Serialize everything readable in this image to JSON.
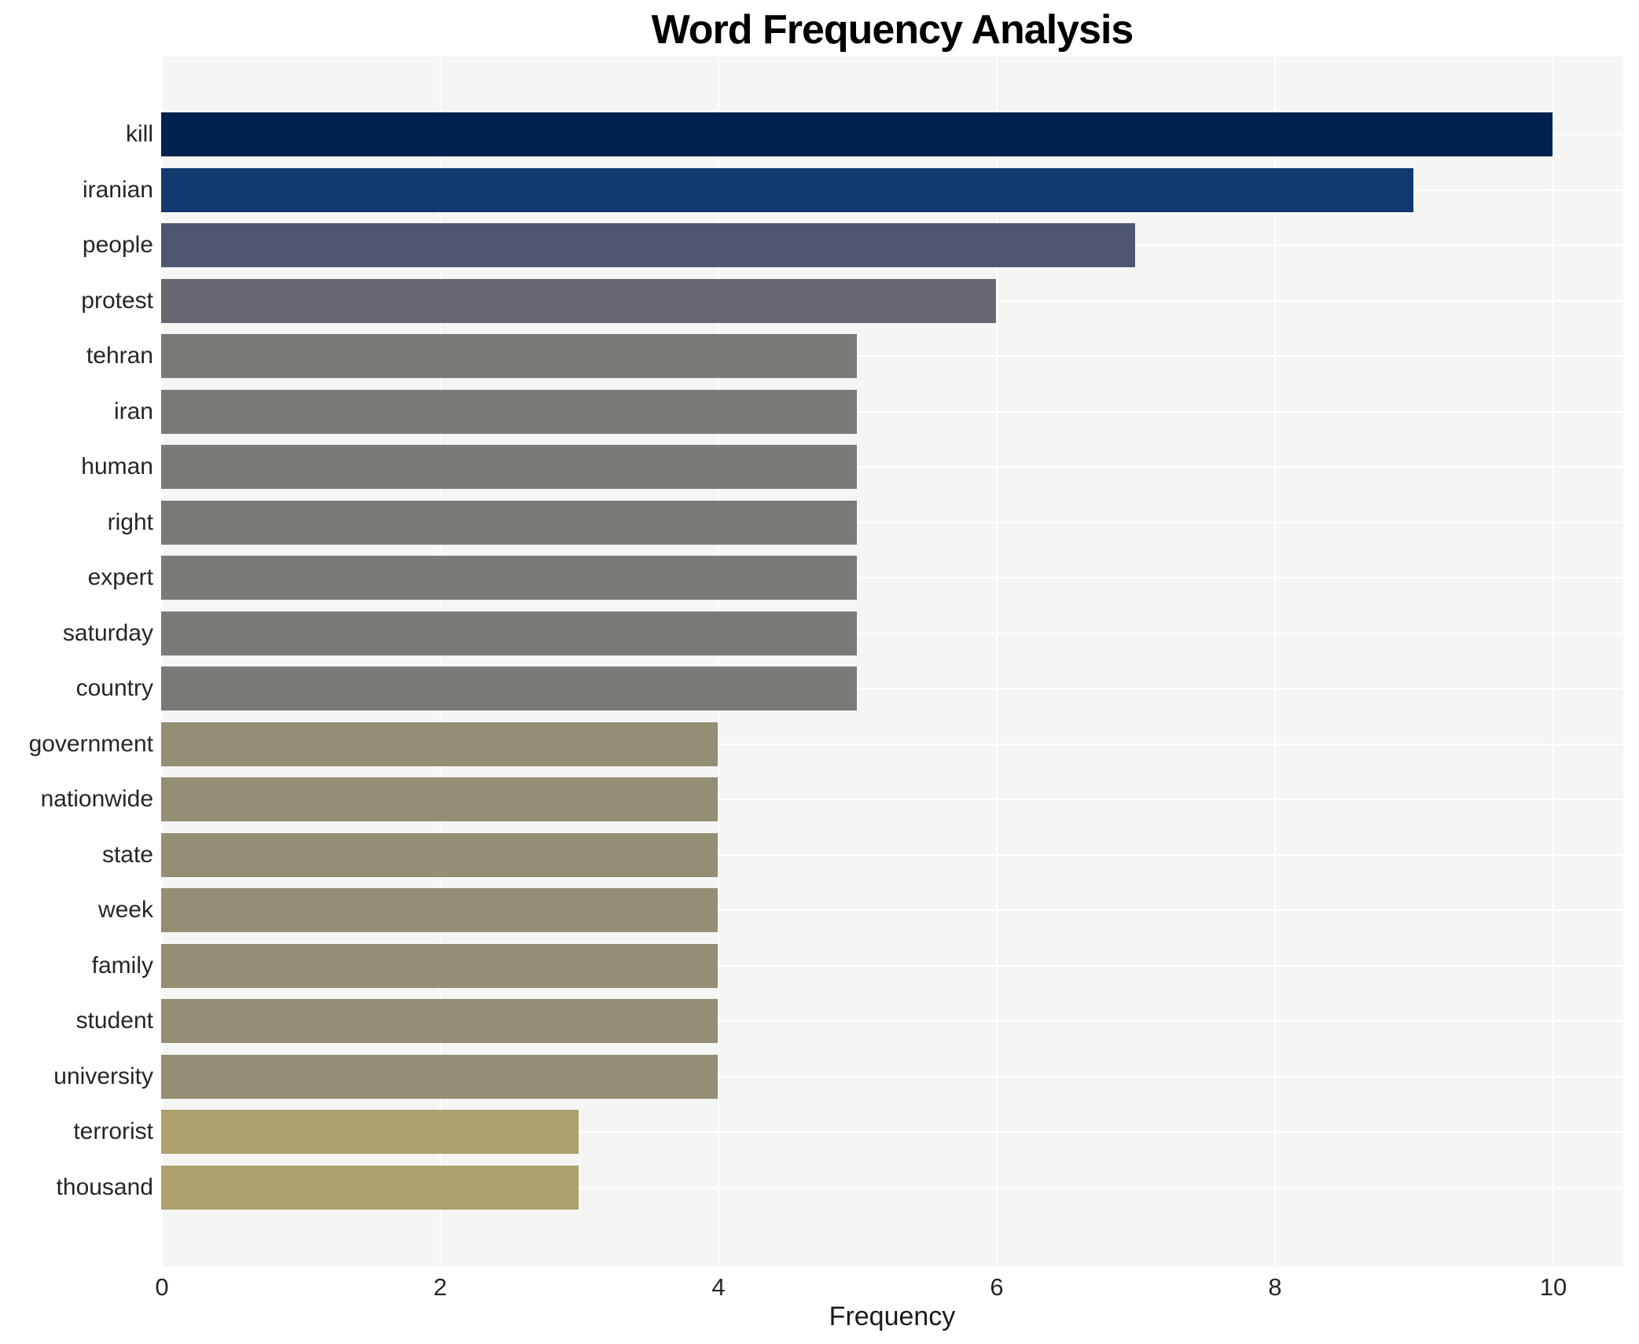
{
  "chart_data": {
    "type": "bar",
    "orientation": "horizontal",
    "title": "Word Frequency Analysis",
    "xlabel": "Frequency",
    "ylabel": "",
    "categories": [
      "kill",
      "iranian",
      "people",
      "protest",
      "tehran",
      "iran",
      "human",
      "right",
      "expert",
      "saturday",
      "country",
      "government",
      "nationwide",
      "state",
      "week",
      "family",
      "student",
      "university",
      "terrorist",
      "thousand"
    ],
    "values": [
      10,
      9,
      7,
      6,
      5,
      5,
      5,
      5,
      5,
      5,
      5,
      4,
      4,
      4,
      4,
      4,
      4,
      4,
      3,
      3
    ],
    "bar_colors": [
      "#00224e",
      "#123a70",
      "#4e576f",
      "#66676f",
      "#7b7a77",
      "#7b7a77",
      "#7b7a77",
      "#7b7a77",
      "#7b7a77",
      "#7b7a77",
      "#7b7a77",
      "#948e74",
      "#948e74",
      "#948e74",
      "#948e74",
      "#948e74",
      "#948e74",
      "#948e74",
      "#aca06c",
      "#aca06c"
    ],
    "xticks": [
      0,
      2,
      4,
      6,
      8,
      10
    ],
    "xlim": [
      0,
      10.5
    ],
    "grid": true,
    "legend": false,
    "plot_background": "#f5f5f3",
    "grid_color": "#ffffff",
    "tick_text_color": "#262626",
    "title_color": "#000000"
  }
}
